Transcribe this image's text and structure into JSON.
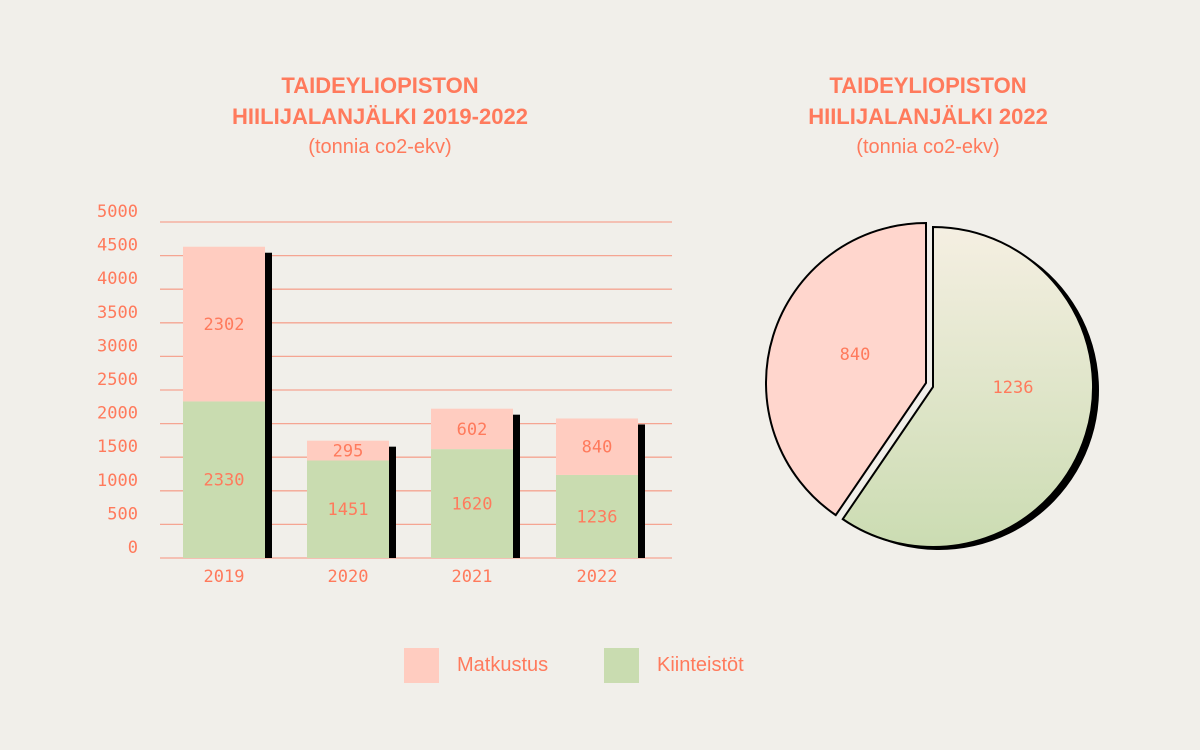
{
  "colors": {
    "matkustus": "#ffccc0",
    "kiinteistot": "#c9dcb0",
    "text": "#ff7a5c",
    "grid": "#f5a592",
    "shadow": "#000000"
  },
  "chart_data": [
    {
      "type": "bar",
      "stacked": true,
      "title": "TAIDEYLIOPISTON HIILIJALANJÄLKI 2019-2022",
      "subtitle": "(tonnia co2-ekv)",
      "categories": [
        "2019",
        "2020",
        "2021",
        "2022"
      ],
      "series": [
        {
          "name": "Kiinteistöt",
          "values": [
            2330,
            1451,
            1620,
            1236
          ]
        },
        {
          "name": "Matkustus",
          "values": [
            2302,
            295,
            602,
            840
          ]
        }
      ],
      "ylim": [
        0,
        5000
      ],
      "yticks": [
        0,
        500,
        1000,
        1500,
        2000,
        2500,
        3000,
        3500,
        4000,
        4500,
        5000
      ],
      "grid": true
    },
    {
      "type": "pie",
      "title": "TAIDEYLIOPISTON HIILIJALANJÄLKI 2022",
      "subtitle": "(tonnia co2-ekv)",
      "slices": [
        {
          "name": "Matkustus",
          "value": 840
        },
        {
          "name": "Kiinteistöt",
          "value": 1236
        }
      ]
    }
  ],
  "titles": {
    "bar_line1": "TAIDEYLIOPISTON",
    "bar_line2": "HIILIJALANJÄLKI 2019-2022",
    "bar_sub": "(tonnia co2-ekv)",
    "pie_line1": "TAIDEYLIOPISTON",
    "pie_line2": "HIILIJALANJÄLKI 2022",
    "pie_sub": "(tonnia co2-ekv)"
  },
  "legend": [
    {
      "label": "Matkustus"
    },
    {
      "label": "Kiinteistöt"
    }
  ]
}
